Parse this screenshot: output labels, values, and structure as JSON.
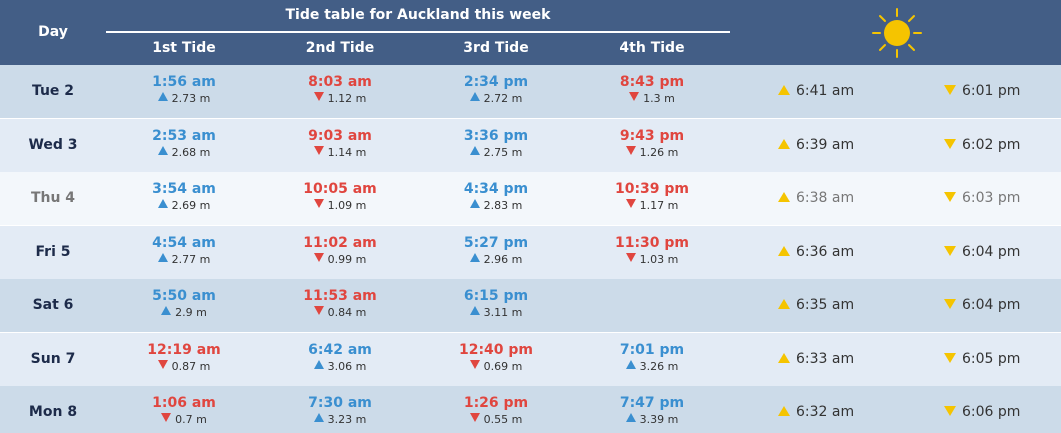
{
  "header": {
    "day_label": "Day",
    "title": "Tide table for Auckland this week",
    "tide_labels": [
      "1st Tide",
      "2nd Tide",
      "3rd Tide",
      "4th Tide"
    ],
    "sun_icon": "sun-icon"
  },
  "colors": {
    "header_bg": "#435e86",
    "high_tide": "#3a8fd0",
    "low_tide": "#e0463f",
    "sun": "#f5c400"
  },
  "rows": [
    {
      "day": "Tue 2",
      "tides": [
        {
          "time": "1:56 am",
          "height": "2.73 m",
          "dir": "high"
        },
        {
          "time": "8:03 am",
          "height": "1.12 m",
          "dir": "low"
        },
        {
          "time": "2:34 pm",
          "height": "2.72 m",
          "dir": "high"
        },
        {
          "time": "8:43 pm",
          "height": "1.3 m",
          "dir": "low"
        }
      ],
      "sunrise": "6:41 am",
      "sunset": "6:01 pm"
    },
    {
      "day": "Wed 3",
      "tides": [
        {
          "time": "2:53 am",
          "height": "2.68 m",
          "dir": "high"
        },
        {
          "time": "9:03 am",
          "height": "1.14 m",
          "dir": "low"
        },
        {
          "time": "3:36 pm",
          "height": "2.75 m",
          "dir": "high"
        },
        {
          "time": "9:43 pm",
          "height": "1.26 m",
          "dir": "low"
        }
      ],
      "sunrise": "6:39 am",
      "sunset": "6:02 pm"
    },
    {
      "day": "Thu 4",
      "tides": [
        {
          "time": "3:54 am",
          "height": "2.69 m",
          "dir": "high"
        },
        {
          "time": "10:05 am",
          "height": "1.09 m",
          "dir": "low"
        },
        {
          "time": "4:34 pm",
          "height": "2.83 m",
          "dir": "high"
        },
        {
          "time": "10:39 pm",
          "height": "1.17 m",
          "dir": "low"
        }
      ],
      "sunrise": "6:38 am",
      "sunset": "6:03 pm"
    },
    {
      "day": "Fri 5",
      "tides": [
        {
          "time": "4:54 am",
          "height": "2.77 m",
          "dir": "high"
        },
        {
          "time": "11:02 am",
          "height": "0.99 m",
          "dir": "low"
        },
        {
          "time": "5:27 pm",
          "height": "2.96 m",
          "dir": "high"
        },
        {
          "time": "11:30 pm",
          "height": "1.03 m",
          "dir": "low"
        }
      ],
      "sunrise": "6:36 am",
      "sunset": "6:04 pm"
    },
    {
      "day": "Sat 6",
      "tides": [
        {
          "time": "5:50 am",
          "height": "2.9 m",
          "dir": "high"
        },
        {
          "time": "11:53 am",
          "height": "0.84 m",
          "dir": "low"
        },
        {
          "time": "6:15 pm",
          "height": "3.11 m",
          "dir": "high"
        }
      ],
      "sunrise": "6:35 am",
      "sunset": "6:04 pm"
    },
    {
      "day": "Sun 7",
      "tides": [
        {
          "time": "12:19 am",
          "height": "0.87 m",
          "dir": "low"
        },
        {
          "time": "6:42 am",
          "height": "3.06 m",
          "dir": "high"
        },
        {
          "time": "12:40 pm",
          "height": "0.69 m",
          "dir": "low"
        },
        {
          "time": "7:01 pm",
          "height": "3.26 m",
          "dir": "high"
        }
      ],
      "sunrise": "6:33 am",
      "sunset": "6:05 pm"
    },
    {
      "day": "Mon 8",
      "tides": [
        {
          "time": "1:06 am",
          "height": "0.7 m",
          "dir": "low"
        },
        {
          "time": "7:30 am",
          "height": "3.23 m",
          "dir": "high"
        },
        {
          "time": "1:26 pm",
          "height": "0.55 m",
          "dir": "low"
        },
        {
          "time": "7:47 pm",
          "height": "3.39 m",
          "dir": "high"
        }
      ],
      "sunrise": "6:32 am",
      "sunset": "6:06 pm"
    }
  ]
}
